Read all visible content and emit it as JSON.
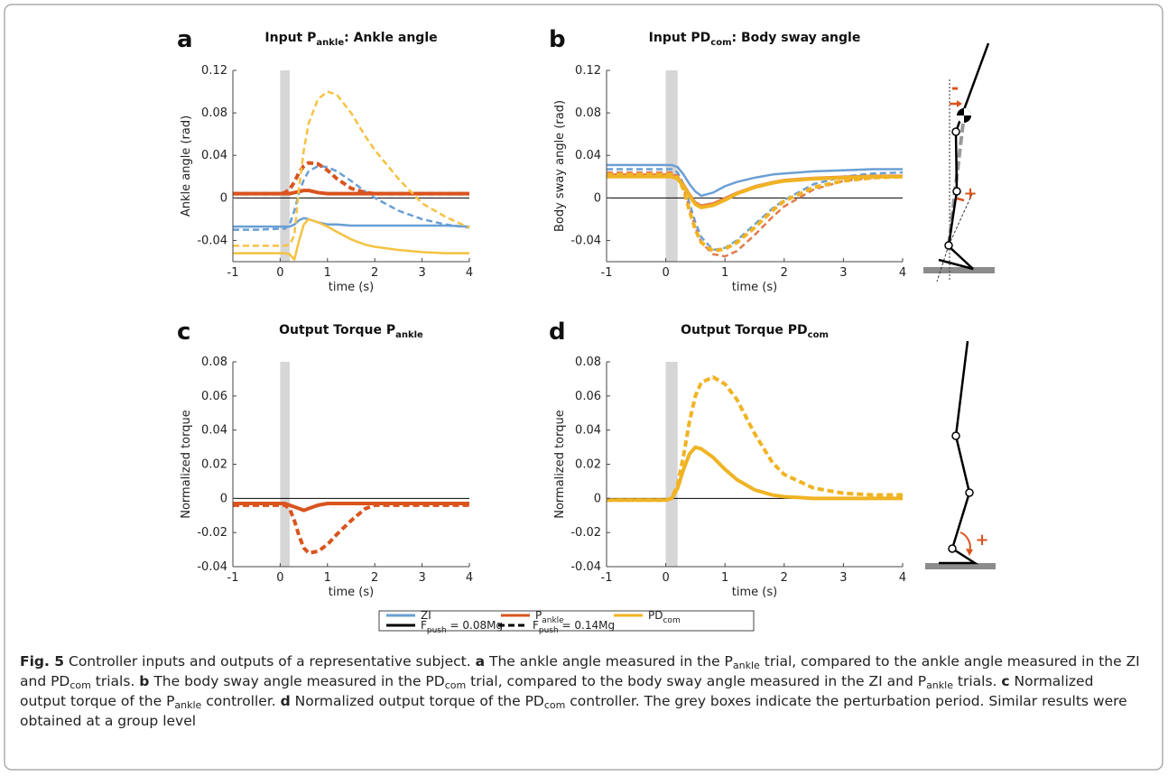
{
  "chart_data": [
    {
      "type": "line",
      "panel": "a",
      "title": [
        {
          "text": "Input P"
        },
        {
          "text": "ankle",
          "style": "sub"
        },
        {
          "text": ": Ankle angle"
        }
      ],
      "xlabel": "time (s)",
      "ylabel": "Ankle angle (rad)",
      "x": [
        -1,
        -0.5,
        0,
        0.1,
        0.2,
        0.3,
        0.4,
        0.5,
        0.6,
        0.8,
        1,
        1.2,
        1.5,
        1.8,
        2,
        2.5,
        3,
        3.5,
        4
      ],
      "xlim": [
        -1,
        4
      ],
      "xticks": [
        -1,
        0,
        1,
        2,
        3,
        4
      ],
      "ylim": [
        -0.06,
        0.12
      ],
      "yticks": [
        -0.04,
        0,
        0.04,
        0.08,
        0.12
      ],
      "shade": [
        0,
        0.2
      ],
      "hline": 0,
      "series": [
        {
          "color": "#6a9fd4",
          "dashed": false,
          "width": 2.5,
          "values": [
            -0.027,
            -0.027,
            -0.027,
            -0.027,
            -0.027,
            -0.025,
            -0.021,
            -0.019,
            -0.02,
            -0.023,
            -0.025,
            -0.025,
            -0.026,
            -0.026,
            -0.026,
            -0.026,
            -0.026,
            -0.026,
            -0.027
          ]
        },
        {
          "color": "#6a9fd4",
          "dashed": true,
          "width": 2.5,
          "values": [
            -0.03,
            -0.03,
            -0.029,
            -0.029,
            -0.025,
            -0.012,
            0.005,
            0.017,
            0.025,
            0.03,
            0.029,
            0.025,
            0.016,
            0.006,
            0,
            -0.012,
            -0.02,
            -0.025,
            -0.028
          ]
        },
        {
          "color": "#d9541e",
          "dashed": false,
          "width": 4,
          "values": [
            0.004,
            0.004,
            0.004,
            0.004,
            0.004,
            0.005,
            0.006,
            0.007,
            0.007,
            0.005,
            0.004,
            0.004,
            0.004,
            0.004,
            0.004,
            0.004,
            0.004,
            0.004,
            0.004
          ]
        },
        {
          "color": "#d9541e",
          "dashed": true,
          "width": 4,
          "values": [
            0.004,
            0.004,
            0.004,
            0.005,
            0.008,
            0.015,
            0.024,
            0.03,
            0.033,
            0.032,
            0.026,
            0.018,
            0.009,
            0.005,
            0.004,
            0.004,
            0.004,
            0.004,
            0.004
          ]
        },
        {
          "color": "#f5c242",
          "dashed": false,
          "width": 2.5,
          "values": [
            -0.052,
            -0.052,
            -0.052,
            -0.052,
            -0.053,
            -0.058,
            -0.04,
            -0.025,
            -0.02,
            -0.023,
            -0.027,
            -0.032,
            -0.039,
            -0.044,
            -0.046,
            -0.049,
            -0.051,
            -0.052,
            -0.052
          ]
        },
        {
          "color": "#f5c242",
          "dashed": true,
          "width": 2.5,
          "values": [
            -0.045,
            -0.045,
            -0.045,
            -0.045,
            -0.044,
            -0.035,
            0.01,
            0.045,
            0.07,
            0.093,
            0.1,
            0.097,
            0.08,
            0.058,
            0.045,
            0.018,
            -0.005,
            -0.018,
            -0.028
          ]
        }
      ]
    },
    {
      "type": "line",
      "panel": "b",
      "title": [
        {
          "text": "Input PD"
        },
        {
          "text": "com",
          "style": "sub"
        },
        {
          "text": ": Body sway angle"
        }
      ],
      "xlabel": "time (s)",
      "ylabel": "Body sway angle (rad)",
      "x": [
        -1,
        -0.5,
        0,
        0.1,
        0.2,
        0.3,
        0.4,
        0.5,
        0.6,
        0.8,
        1,
        1.2,
        1.5,
        1.8,
        2,
        2.5,
        3,
        3.5,
        4
      ],
      "xlim": [
        -1,
        4
      ],
      "xticks": [
        -1,
        0,
        1,
        2,
        3,
        4
      ],
      "ylim": [
        -0.06,
        0.12
      ],
      "yticks": [
        -0.04,
        0,
        0.04,
        0.08,
        0.12
      ],
      "shade": [
        0,
        0.2
      ],
      "hline": 0,
      "series": [
        {
          "color": "#6a9fd4",
          "dashed": false,
          "width": 2.5,
          "values": [
            0.031,
            0.031,
            0.031,
            0.031,
            0.029,
            0.022,
            0.013,
            0.006,
            0.002,
            0.005,
            0.011,
            0.015,
            0.019,
            0.022,
            0.023,
            0.025,
            0.026,
            0.027,
            0.027
          ]
        },
        {
          "color": "#6a9fd4",
          "dashed": true,
          "width": 2.5,
          "values": [
            0.027,
            0.027,
            0.027,
            0.027,
            0.024,
            0.013,
            -0.005,
            -0.023,
            -0.037,
            -0.049,
            -0.047,
            -0.04,
            -0.025,
            -0.01,
            -0.002,
            0.013,
            0.02,
            0.023,
            0.024
          ]
        },
        {
          "color": "#e07a4f",
          "dashed": false,
          "width": 2.5,
          "values": [
            0.022,
            0.022,
            0.022,
            0.022,
            0.02,
            0.013,
            0.004,
            -0.004,
            -0.007,
            -0.005,
            0,
            0.005,
            0.011,
            0.015,
            0.017,
            0.019,
            0.02,
            0.021,
            0.021
          ]
        },
        {
          "color": "#e07a4f",
          "dashed": true,
          "width": 2.5,
          "values": [
            0.024,
            0.024,
            0.024,
            0.024,
            0.021,
            0.01,
            -0.01,
            -0.028,
            -0.042,
            -0.053,
            -0.055,
            -0.05,
            -0.035,
            -0.018,
            -0.008,
            0.008,
            0.016,
            0.019,
            0.02
          ]
        },
        {
          "color": "#f0b323",
          "dashed": false,
          "width": 4,
          "values": [
            0.02,
            0.02,
            0.02,
            0.02,
            0.018,
            0.011,
            0.002,
            -0.006,
            -0.009,
            -0.007,
            -0.002,
            0.004,
            0.01,
            0.014,
            0.016,
            0.018,
            0.019,
            0.02,
            0.02
          ]
        },
        {
          "color": "#f0b323",
          "dashed": true,
          "width": 4,
          "values": [
            0.022,
            0.022,
            0.022,
            0.022,
            0.019,
            0.008,
            -0.012,
            -0.03,
            -0.042,
            -0.05,
            -0.048,
            -0.042,
            -0.028,
            -0.012,
            -0.003,
            0.01,
            0.016,
            0.019,
            0.02
          ]
        }
      ]
    },
    {
      "type": "line",
      "panel": "c",
      "title": [
        {
          "text": "Output Torque P"
        },
        {
          "text": "ankle",
          "style": "sub"
        }
      ],
      "xlabel": "time (s)",
      "ylabel": "Normalized torque",
      "x": [
        -1,
        -0.5,
        0,
        0.1,
        0.2,
        0.3,
        0.4,
        0.5,
        0.6,
        0.8,
        1,
        1.2,
        1.5,
        1.8,
        2,
        2.5,
        3,
        3.5,
        4
      ],
      "xlim": [
        -1,
        4
      ],
      "xticks": [
        -1,
        0,
        1,
        2,
        3,
        4
      ],
      "ylim": [
        -0.04,
        0.08
      ],
      "yticks": [
        -0.04,
        -0.02,
        0,
        0.02,
        0.04,
        0.06,
        0.08
      ],
      "shade": [
        0,
        0.2
      ],
      "hline": 0,
      "series": [
        {
          "color": "#d9541e",
          "dashed": false,
          "width": 4,
          "values": [
            -0.003,
            -0.003,
            -0.003,
            -0.003,
            -0.004,
            -0.005,
            -0.006,
            -0.007,
            -0.006,
            -0.004,
            -0.003,
            -0.003,
            -0.003,
            -0.003,
            -0.003,
            -0.003,
            -0.003,
            -0.003,
            -0.003
          ]
        },
        {
          "color": "#d9541e",
          "dashed": true,
          "width": 4,
          "values": [
            -0.004,
            -0.004,
            -0.004,
            -0.004,
            -0.006,
            -0.013,
            -0.022,
            -0.029,
            -0.032,
            -0.031,
            -0.027,
            -0.021,
            -0.013,
            -0.006,
            -0.004,
            -0.004,
            -0.004,
            -0.004,
            -0.004
          ]
        }
      ]
    },
    {
      "type": "line",
      "panel": "d",
      "title": [
        {
          "text": "Output Torque PD"
        },
        {
          "text": "com",
          "style": "sub"
        }
      ],
      "xlabel": "time (s)",
      "ylabel": "Normalized torque",
      "x": [
        -1,
        -0.5,
        0,
        0.1,
        0.2,
        0.3,
        0.4,
        0.5,
        0.6,
        0.8,
        1,
        1.2,
        1.5,
        1.8,
        2,
        2.5,
        3,
        3.5,
        4
      ],
      "xlim": [
        -1,
        4
      ],
      "xticks": [
        -1,
        0,
        1,
        2,
        3,
        4
      ],
      "ylim": [
        -0.04,
        0.08
      ],
      "yticks": [
        -0.04,
        -0.02,
        0,
        0.02,
        0.04,
        0.06,
        0.08
      ],
      "shade": [
        0,
        0.2
      ],
      "hline": 0,
      "series": [
        {
          "color": "#f0b323",
          "dashed": false,
          "width": 4,
          "values": [
            -0.001,
            -0.001,
            -0.001,
            0,
            0.006,
            0.017,
            0.026,
            0.03,
            0.029,
            0.024,
            0.017,
            0.011,
            0.005,
            0.002,
            0.001,
            0,
            0,
            0,
            0
          ]
        },
        {
          "color": "#f0b323",
          "dashed": true,
          "width": 4,
          "values": [
            -0.001,
            -0.001,
            -0.001,
            0,
            0.008,
            0.025,
            0.045,
            0.06,
            0.068,
            0.071,
            0.067,
            0.058,
            0.038,
            0.021,
            0.014,
            0.006,
            0.003,
            0.002,
            0.002
          ]
        }
      ]
    }
  ],
  "legend": {
    "items": [
      {
        "label": [
          {
            "text": "ZI"
          }
        ],
        "color": "#6a9fd4",
        "dashed": false
      },
      {
        "label": [
          {
            "text": "P"
          },
          {
            "text": "ankle",
            "style": "sub"
          }
        ],
        "color": "#d9541e",
        "dashed": false
      },
      {
        "label": [
          {
            "text": "PD"
          },
          {
            "text": "com",
            "style": "sub"
          }
        ],
        "color": "#f0b323",
        "dashed": false
      },
      {
        "label": [
          {
            "text": "F"
          },
          {
            "text": "push",
            "style": "sub"
          },
          {
            "text": " = 0.08Mg"
          }
        ],
        "color": "#000000",
        "dashed": false
      },
      {
        "label": [
          {
            "text": "F"
          },
          {
            "text": "push",
            "style": "sub"
          },
          {
            "text": " = 0.14Mg"
          }
        ],
        "color": "#000000",
        "dashed": true
      }
    ]
  },
  "figure_marks": [
    "-",
    "+",
    "+"
  ],
  "caption": [
    {
      "text": "Fig. 5",
      "style": "bold"
    },
    {
      "text": " Controller inputs and outputs of a representative subject. "
    },
    {
      "text": "a",
      "style": "bold"
    },
    {
      "text": " The ankle angle measured in the P"
    },
    {
      "text": "ankle",
      "style": "sub"
    },
    {
      "text": " trial, compared to the ankle angle measured in the ZI and PD"
    },
    {
      "text": "com",
      "style": "sub"
    },
    {
      "text": " trials. "
    },
    {
      "text": "b",
      "style": "bold"
    },
    {
      "text": " The body sway angle measured in the PD"
    },
    {
      "text": "com",
      "style": "sub"
    },
    {
      "text": " trial, compared to the body sway angle measured in the ZI and P"
    },
    {
      "text": "ankle",
      "style": "sub"
    },
    {
      "text": " trials. "
    },
    {
      "text": "c",
      "style": "bold"
    },
    {
      "text": " Normalized output torque of the P"
    },
    {
      "text": "ankle",
      "style": "sub"
    },
    {
      "text": " controller. "
    },
    {
      "text": "d",
      "style": "bold"
    },
    {
      "text": " Normalized output torque of the PD"
    },
    {
      "text": "com",
      "style": "sub"
    },
    {
      "text": " controller. The grey boxes indicate the perturbation period. Similar results were obtained at a group level"
    }
  ]
}
